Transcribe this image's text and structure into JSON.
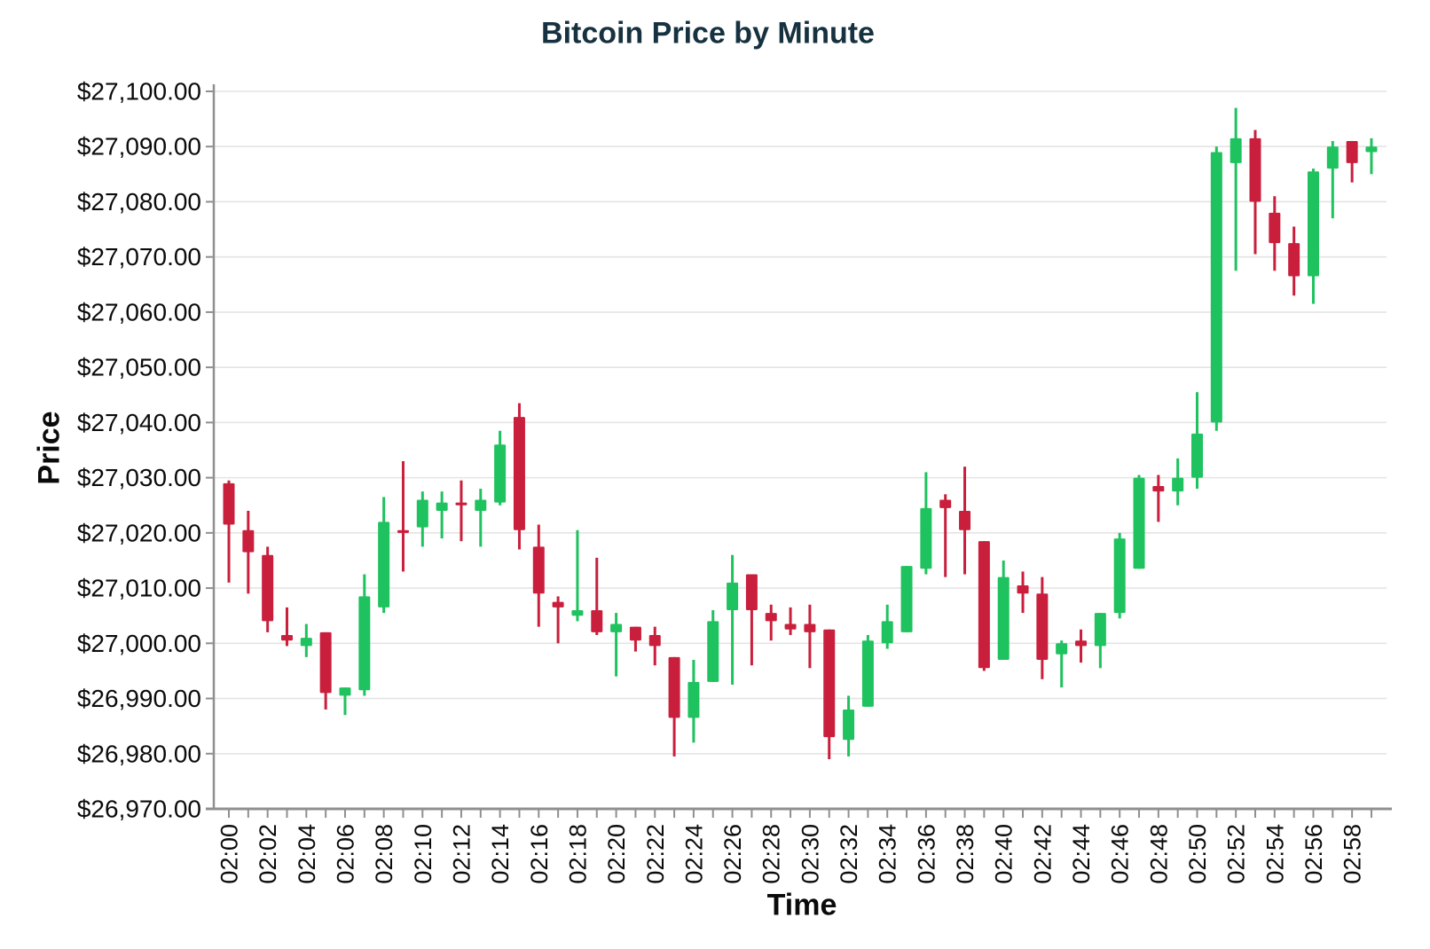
{
  "title": "Bitcoin Price by Minute",
  "colors": {
    "up": "#1ec25e",
    "down": "#c91f3c",
    "grid": "#e4e4e4",
    "axis_line": "#8f8f8f",
    "title_text": "#16313f",
    "tick_text": "#0b0b0b"
  },
  "chart_data": {
    "type": "candlestick",
    "title": "Bitcoin Price by Minute",
    "xlabel": "Time",
    "ylabel": "Price",
    "ylim": [
      26970,
      27100
    ],
    "y_tick_interval": 10,
    "y_tick_format": "$#,##0.00",
    "x_label_every_n_minutes": 2,
    "grid": true,
    "legend": false,
    "candles": [
      {
        "time": "02:00",
        "open": 27029.0,
        "high": 27029.5,
        "low": 27011.0,
        "close": 27021.5
      },
      {
        "time": "02:01",
        "open": 27020.5,
        "high": 27024.0,
        "low": 27009.0,
        "close": 27016.5
      },
      {
        "time": "02:02",
        "open": 27016.0,
        "high": 27017.5,
        "low": 27002.0,
        "close": 27004.0
      },
      {
        "time": "02:03",
        "open": 27001.5,
        "high": 27006.5,
        "low": 26999.5,
        "close": 27000.5
      },
      {
        "time": "02:04",
        "open": 26999.5,
        "high": 27003.5,
        "low": 26997.5,
        "close": 27001.0
      },
      {
        "time": "02:05",
        "open": 27002.0,
        "high": 27002.0,
        "low": 26988.0,
        "close": 26991.0
      },
      {
        "time": "02:06",
        "open": 26990.5,
        "high": 26992.0,
        "low": 26987.0,
        "close": 26992.0
      },
      {
        "time": "02:07",
        "open": 26991.5,
        "high": 27012.5,
        "low": 26990.5,
        "close": 27008.5
      },
      {
        "time": "02:08",
        "open": 27006.5,
        "high": 27026.5,
        "low": 27005.5,
        "close": 27022.0
      },
      {
        "time": "02:09",
        "open": 27020.5,
        "high": 27033.0,
        "low": 27013.0,
        "close": 27020.0
      },
      {
        "time": "02:10",
        "open": 27021.0,
        "high": 27027.5,
        "low": 27017.5,
        "close": 27026.0
      },
      {
        "time": "02:11",
        "open": 27024.0,
        "high": 27027.5,
        "low": 27019.0,
        "close": 27025.5
      },
      {
        "time": "02:12",
        "open": 27025.5,
        "high": 27029.5,
        "low": 27018.5,
        "close": 27025.0
      },
      {
        "time": "02:13",
        "open": 27024.0,
        "high": 27028.0,
        "low": 27017.5,
        "close": 27026.0
      },
      {
        "time": "02:14",
        "open": 27025.5,
        "high": 27038.5,
        "low": 27025.0,
        "close": 27036.0
      },
      {
        "time": "02:15",
        "open": 27041.0,
        "high": 27043.5,
        "low": 27017.0,
        "close": 27020.5
      },
      {
        "time": "02:16",
        "open": 27017.5,
        "high": 27021.5,
        "low": 27003.0,
        "close": 27009.0
      },
      {
        "time": "02:17",
        "open": 27007.5,
        "high": 27008.5,
        "low": 27000.0,
        "close": 27006.5
      },
      {
        "time": "02:18",
        "open": 27005.0,
        "high": 27020.5,
        "low": 27004.0,
        "close": 27006.0
      },
      {
        "time": "02:19",
        "open": 27006.0,
        "high": 27015.5,
        "low": 27001.5,
        "close": 27002.0
      },
      {
        "time": "02:20",
        "open": 27002.0,
        "high": 27005.5,
        "low": 26994.0,
        "close": 27003.5
      },
      {
        "time": "02:21",
        "open": 27003.0,
        "high": 27003.0,
        "low": 26998.5,
        "close": 27000.5
      },
      {
        "time": "02:22",
        "open": 27001.5,
        "high": 27003.0,
        "low": 26996.0,
        "close": 26999.5
      },
      {
        "time": "02:23",
        "open": 26997.5,
        "high": 26997.5,
        "low": 26979.5,
        "close": 26986.5
      },
      {
        "time": "02:24",
        "open": 26986.5,
        "high": 26997.0,
        "low": 26982.0,
        "close": 26993.0
      },
      {
        "time": "02:25",
        "open": 26993.0,
        "high": 27006.0,
        "low": 26993.0,
        "close": 27004.0
      },
      {
        "time": "02:26",
        "open": 27006.0,
        "high": 27016.0,
        "low": 26992.5,
        "close": 27011.0
      },
      {
        "time": "02:27",
        "open": 27012.5,
        "high": 27012.5,
        "low": 26996.0,
        "close": 27006.0
      },
      {
        "time": "02:28",
        "open": 27005.5,
        "high": 27007.0,
        "low": 27000.5,
        "close": 27004.0
      },
      {
        "time": "02:29",
        "open": 27003.5,
        "high": 27006.5,
        "low": 27001.5,
        "close": 27002.5
      },
      {
        "time": "02:30",
        "open": 27003.5,
        "high": 27007.0,
        "low": 26995.5,
        "close": 27002.0
      },
      {
        "time": "02:31",
        "open": 27002.5,
        "high": 27002.5,
        "low": 26979.0,
        "close": 26983.0
      },
      {
        "time": "02:32",
        "open": 26982.5,
        "high": 26990.5,
        "low": 26979.5,
        "close": 26988.0
      },
      {
        "time": "02:33",
        "open": 26988.5,
        "high": 27001.5,
        "low": 26988.5,
        "close": 27000.5
      },
      {
        "time": "02:34",
        "open": 27000.0,
        "high": 27007.0,
        "low": 26999.0,
        "close": 27004.0
      },
      {
        "time": "02:35",
        "open": 27002.0,
        "high": 27014.0,
        "low": 27002.0,
        "close": 27014.0
      },
      {
        "time": "02:36",
        "open": 27013.5,
        "high": 27031.0,
        "low": 27012.5,
        "close": 27024.5
      },
      {
        "time": "02:37",
        "open": 27026.0,
        "high": 27027.0,
        "low": 27012.0,
        "close": 27024.5
      },
      {
        "time": "02:38",
        "open": 27024.0,
        "high": 27032.0,
        "low": 27012.5,
        "close": 27020.5
      },
      {
        "time": "02:39",
        "open": 27018.5,
        "high": 27018.5,
        "low": 26995.0,
        "close": 26995.5
      },
      {
        "time": "02:40",
        "open": 26997.0,
        "high": 27015.0,
        "low": 26997.0,
        "close": 27012.0
      },
      {
        "time": "02:41",
        "open": 27010.5,
        "high": 27013.0,
        "low": 27005.5,
        "close": 27009.0
      },
      {
        "time": "02:42",
        "open": 27009.0,
        "high": 27012.0,
        "low": 26993.5,
        "close": 26997.0
      },
      {
        "time": "02:43",
        "open": 26998.0,
        "high": 27000.5,
        "low": 26992.0,
        "close": 27000.0
      },
      {
        "time": "02:44",
        "open": 27000.5,
        "high": 27002.5,
        "low": 26996.5,
        "close": 26999.5
      },
      {
        "time": "02:45",
        "open": 26999.5,
        "high": 27005.5,
        "low": 26995.5,
        "close": 27005.5
      },
      {
        "time": "02:46",
        "open": 27005.5,
        "high": 27020.0,
        "low": 27004.5,
        "close": 27019.0
      },
      {
        "time": "02:47",
        "open": 27013.5,
        "high": 27030.5,
        "low": 27013.5,
        "close": 27030.0
      },
      {
        "time": "02:48",
        "open": 27028.5,
        "high": 27030.5,
        "low": 27022.0,
        "close": 27027.5
      },
      {
        "time": "02:49",
        "open": 27027.5,
        "high": 27033.5,
        "low": 27025.0,
        "close": 27030.0
      },
      {
        "time": "02:50",
        "open": 27030.0,
        "high": 27045.5,
        "low": 27028.0,
        "close": 27038.0
      },
      {
        "time": "02:51",
        "open": 27040.0,
        "high": 27090.0,
        "low": 27038.5,
        "close": 27089.0
      },
      {
        "time": "02:52",
        "open": 27087.0,
        "high": 27097.0,
        "low": 27067.5,
        "close": 27091.5
      },
      {
        "time": "02:53",
        "open": 27091.5,
        "high": 27093.0,
        "low": 27070.5,
        "close": 27080.0
      },
      {
        "time": "02:54",
        "open": 27078.0,
        "high": 27081.0,
        "low": 27067.5,
        "close": 27072.5
      },
      {
        "time": "02:55",
        "open": 27072.5,
        "high": 27075.5,
        "low": 27063.0,
        "close": 27066.5
      },
      {
        "time": "02:56",
        "open": 27066.5,
        "high": 27086.0,
        "low": 27061.5,
        "close": 27085.5
      },
      {
        "time": "02:57",
        "open": 27086.0,
        "high": 27091.0,
        "low": 27077.0,
        "close": 27090.0
      },
      {
        "time": "02:58",
        "open": 27091.0,
        "high": 27091.0,
        "low": 27083.5,
        "close": 27087.0
      },
      {
        "time": "02:59",
        "open": 27089.0,
        "high": 27091.5,
        "low": 27085.0,
        "close": 27090.0
      }
    ]
  }
}
